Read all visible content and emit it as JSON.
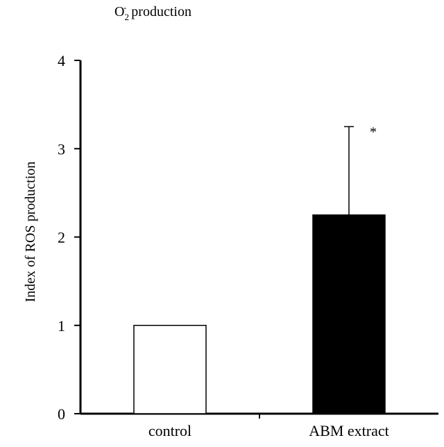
{
  "chart_data": {
    "type": "bar",
    "title": {
      "base": "O",
      "subscript": "2",
      "superscript": "-",
      "rest": "production"
    },
    "xlabel": "",
    "ylabel": "Index of ROS production",
    "categories": [
      "control",
      "ABM extract"
    ],
    "values": [
      1.0,
      2.25
    ],
    "error_upper": [
      null,
      3.25
    ],
    "bar_colors": [
      "#ffffff",
      "#000000"
    ],
    "bar_edge_color": "#000000",
    "annotations": [
      {
        "category": "ABM extract",
        "text": "*"
      }
    ],
    "ylim": [
      0,
      4
    ],
    "yticks": [
      0,
      1,
      2,
      3,
      4
    ],
    "grid": false,
    "legend": "none"
  }
}
